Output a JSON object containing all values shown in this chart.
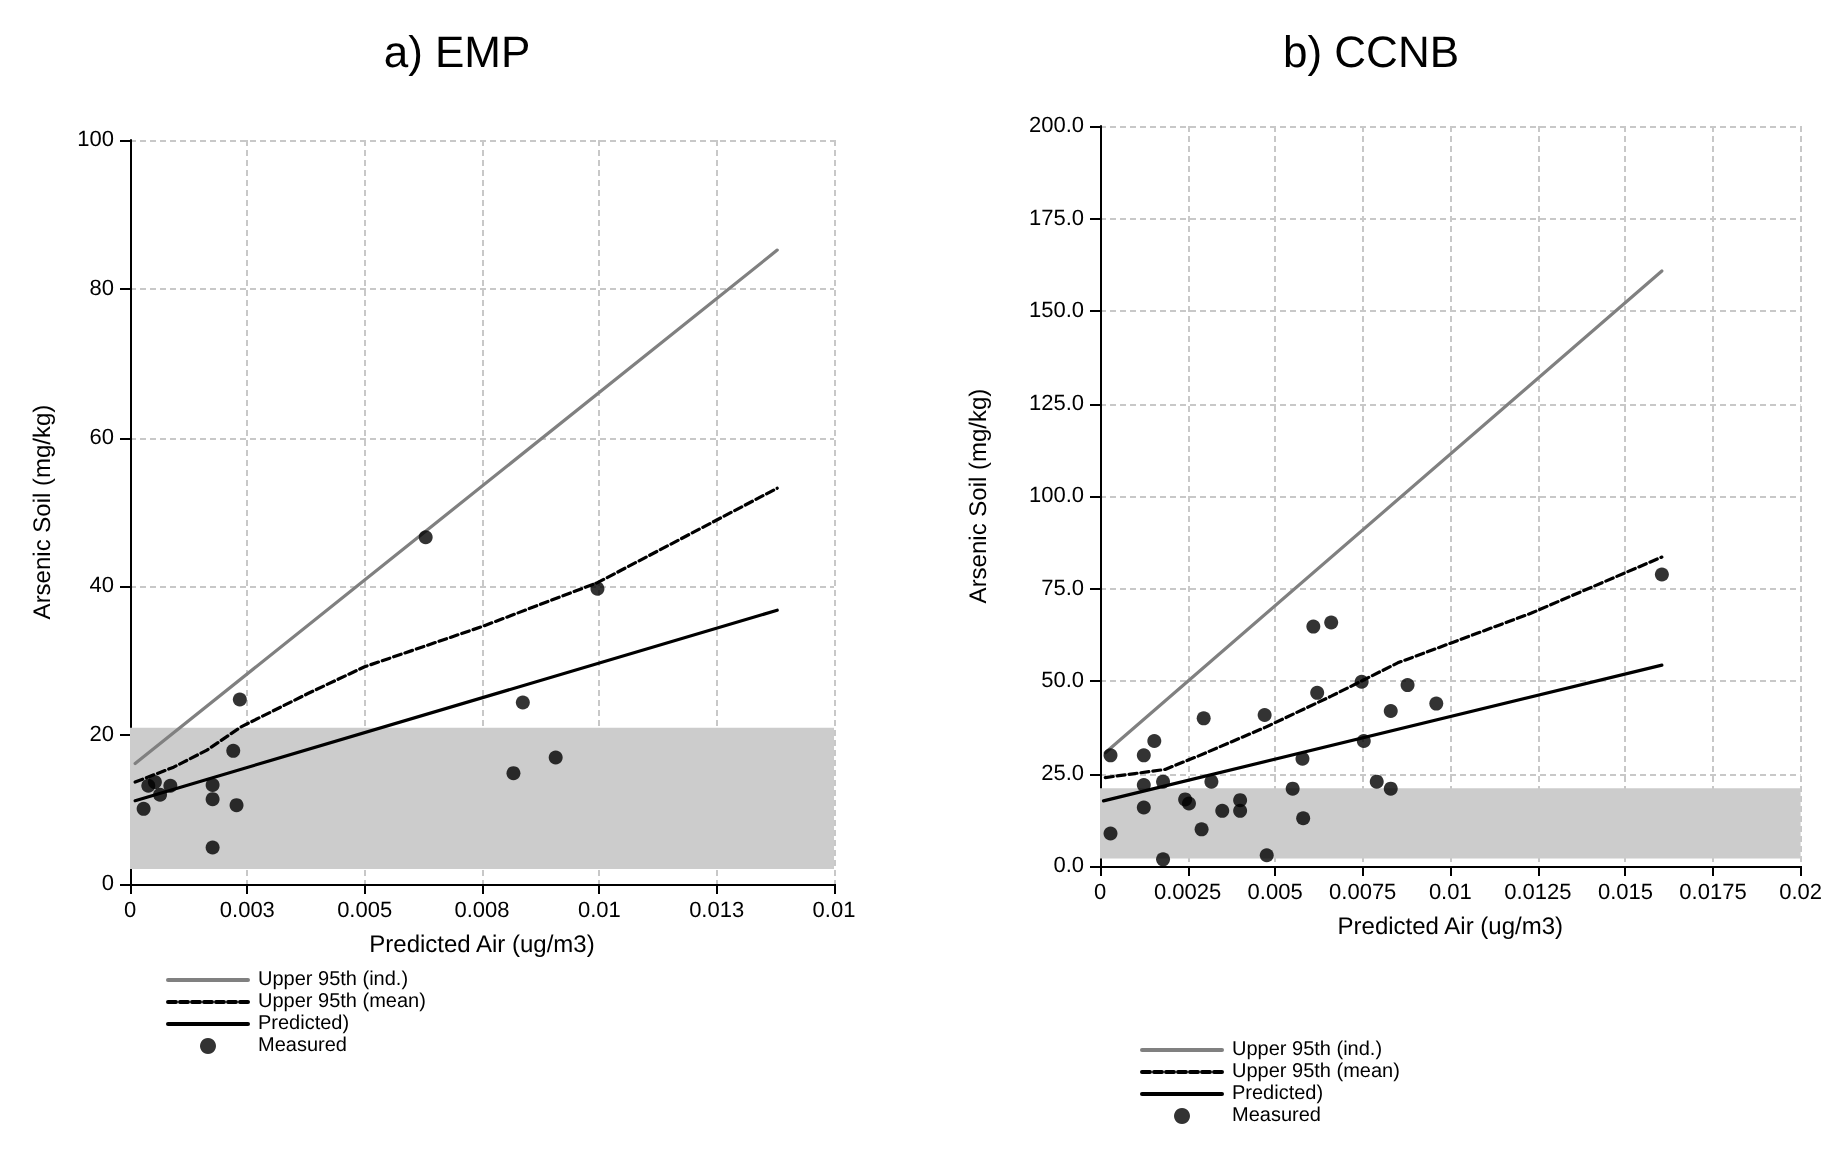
{
  "chart_data": [
    {
      "type": "scatter",
      "title": "a) EMP",
      "xlabel": "Predicted Air (ug/m3)",
      "ylabel": "Arsenic Soil (mg/kg)",
      "xlim": [
        0,
        0.015
      ],
      "xticks": [
        0,
        {
          "value": 0.0025,
          "label": "0.003"
        },
        0.005,
        {
          "value": 0.0075,
          "label": "0.008"
        },
        0.01,
        {
          "value": 0.0125,
          "label": "0.013"
        },
        {
          "value": 0.015,
          "label": "0.01"
        }
      ],
      "ylim": [
        0,
        100
      ],
      "yticks": [
        0,
        20,
        40,
        60,
        80,
        100
      ],
      "grid": true,
      "legend": "bottom",
      "bands": [
        {
          "axis": "y",
          "from": 2,
          "to": 21,
          "color": "#cccccc"
        }
      ],
      "series": [
        {
          "name": "Upper 95th (ind.)",
          "type": "line",
          "color": "#808080",
          "line_style": "solid",
          "marker": "none",
          "x": [
            0.00011,
            0.01379
          ],
          "values": [
            16.2,
            85.2
          ]
        },
        {
          "name": "Upper 95th (mean)",
          "type": "line",
          "color": "#000000",
          "line_style": "dashed",
          "marker": "none",
          "x": [
            0.00011,
            0.00093,
            0.00164,
            0.00236,
            0.00379,
            0.005,
            0.0075,
            0.00996,
            0.01379
          ],
          "values": [
            13.7,
            15.7,
            18.0,
            21.1,
            25.6,
            29.2,
            34.6,
            40.5,
            53.2
          ]
        },
        {
          "name": "Predicted)",
          "type": "line",
          "color": "#000000",
          "line_style": "solid",
          "marker": "none",
          "x": [
            0.00011,
            0.01379
          ],
          "values": [
            11.2,
            36.8
          ]
        },
        {
          "name": "Measured",
          "color": "#000000",
          "marker": "circle",
          "x": [
            0.00029,
            0.00039,
            0.00053,
            0.00064,
            0.00086,
            0.00176,
            0.00176,
            0.00176,
            0.0022,
            0.00227,
            0.00234,
            0.0063,
            0.00817,
            0.00837,
            0.00907,
            0.00996
          ],
          "values": [
            10.1,
            13.2,
            13.7,
            12.0,
            13.2,
            13.3,
            11.4,
            4.9,
            17.9,
            10.6,
            24.8,
            46.6,
            14.9,
            24.4,
            17.0,
            39.7
          ]
        }
      ]
    },
    {
      "type": "scatter",
      "title": "b) CCNB",
      "xlabel": "Predicted Air (ug/m3)",
      "ylabel": "Arsenic Soil (mg/kg)",
      "xlim": [
        0,
        0.02
      ],
      "xticks": [
        0,
        0.0025,
        0.005,
        0.0075,
        0.01,
        0.0125,
        0.015,
        0.0175,
        0.02
      ],
      "ylim": [
        0,
        200
      ],
      "yticks": [
        {
          "value": 0,
          "label": "0.0"
        },
        {
          "value": 25,
          "label": "25.0"
        },
        {
          "value": 50,
          "label": "50.0"
        },
        {
          "value": 75,
          "label": "75.0"
        },
        {
          "value": 100,
          "label": "100.0"
        },
        {
          "value": 125,
          "label": "125.0"
        },
        {
          "value": 150,
          "label": "150.0"
        },
        {
          "value": 175,
          "label": "175.0"
        },
        {
          "value": 200,
          "label": "200.0"
        }
      ],
      "grid": true,
      "legend": "bottom",
      "bands": [
        {
          "axis": "y",
          "from": 2,
          "to": 21,
          "color": "#cccccc"
        }
      ],
      "series": [
        {
          "name": "Upper 95th (ind.)",
          "type": "line",
          "color": "#808080",
          "line_style": "solid",
          "marker": "none",
          "x": [
            0.00015,
            0.01604
          ],
          "values": [
            30.6,
            160.8
          ]
        },
        {
          "name": "Upper 95th (mean)",
          "type": "line",
          "color": "#000000",
          "line_style": "dashed",
          "marker": "none",
          "x": [
            0.00015,
            0.00186,
            0.0028,
            0.0047,
            0.0066,
            0.0085,
            0.0123,
            0.01604
          ],
          "values": [
            23.9,
            26.1,
            29.7,
            37.4,
            45.9,
            54.9,
            68.3,
            83.5
          ]
        },
        {
          "name": "Predicted)",
          "type": "line",
          "color": "#000000",
          "line_style": "solid",
          "marker": "none",
          "x": [
            0.0001,
            0.01604
          ],
          "values": [
            17.6,
            54.3
          ]
        },
        {
          "name": "Measured",
          "color": "#000000",
          "marker": "circle",
          "x": [
            0.0003,
            0.0003,
            0.00125,
            0.00155,
            0.00125,
            0.00125,
            0.0018,
            0.0018,
            0.00243,
            0.00254,
            0.0029,
            0.00296,
            0.00318,
            0.00349,
            0.004,
            0.004,
            0.0047,
            0.00476,
            0.0055,
            0.00578,
            0.0058,
            0.00609,
            0.0062,
            0.0066,
            0.00747,
            0.00753,
            0.0079,
            0.0083,
            0.0083,
            0.00878,
            0.0096,
            0.01604
          ],
          "values": [
            29.9,
            8.8,
            29.9,
            33.8,
            21.9,
            15.8,
            22.8,
            1.8,
            18.0,
            16.9,
            9.9,
            39.9,
            22.8,
            14.9,
            17.8,
            14.9,
            40.8,
            2.9,
            20.9,
            29.0,
            12.9,
            64.7,
            46.8,
            65.8,
            49.8,
            33.8,
            22.8,
            41.9,
            20.9,
            48.9,
            43.9,
            78.8
          ]
        }
      ]
    }
  ]
}
